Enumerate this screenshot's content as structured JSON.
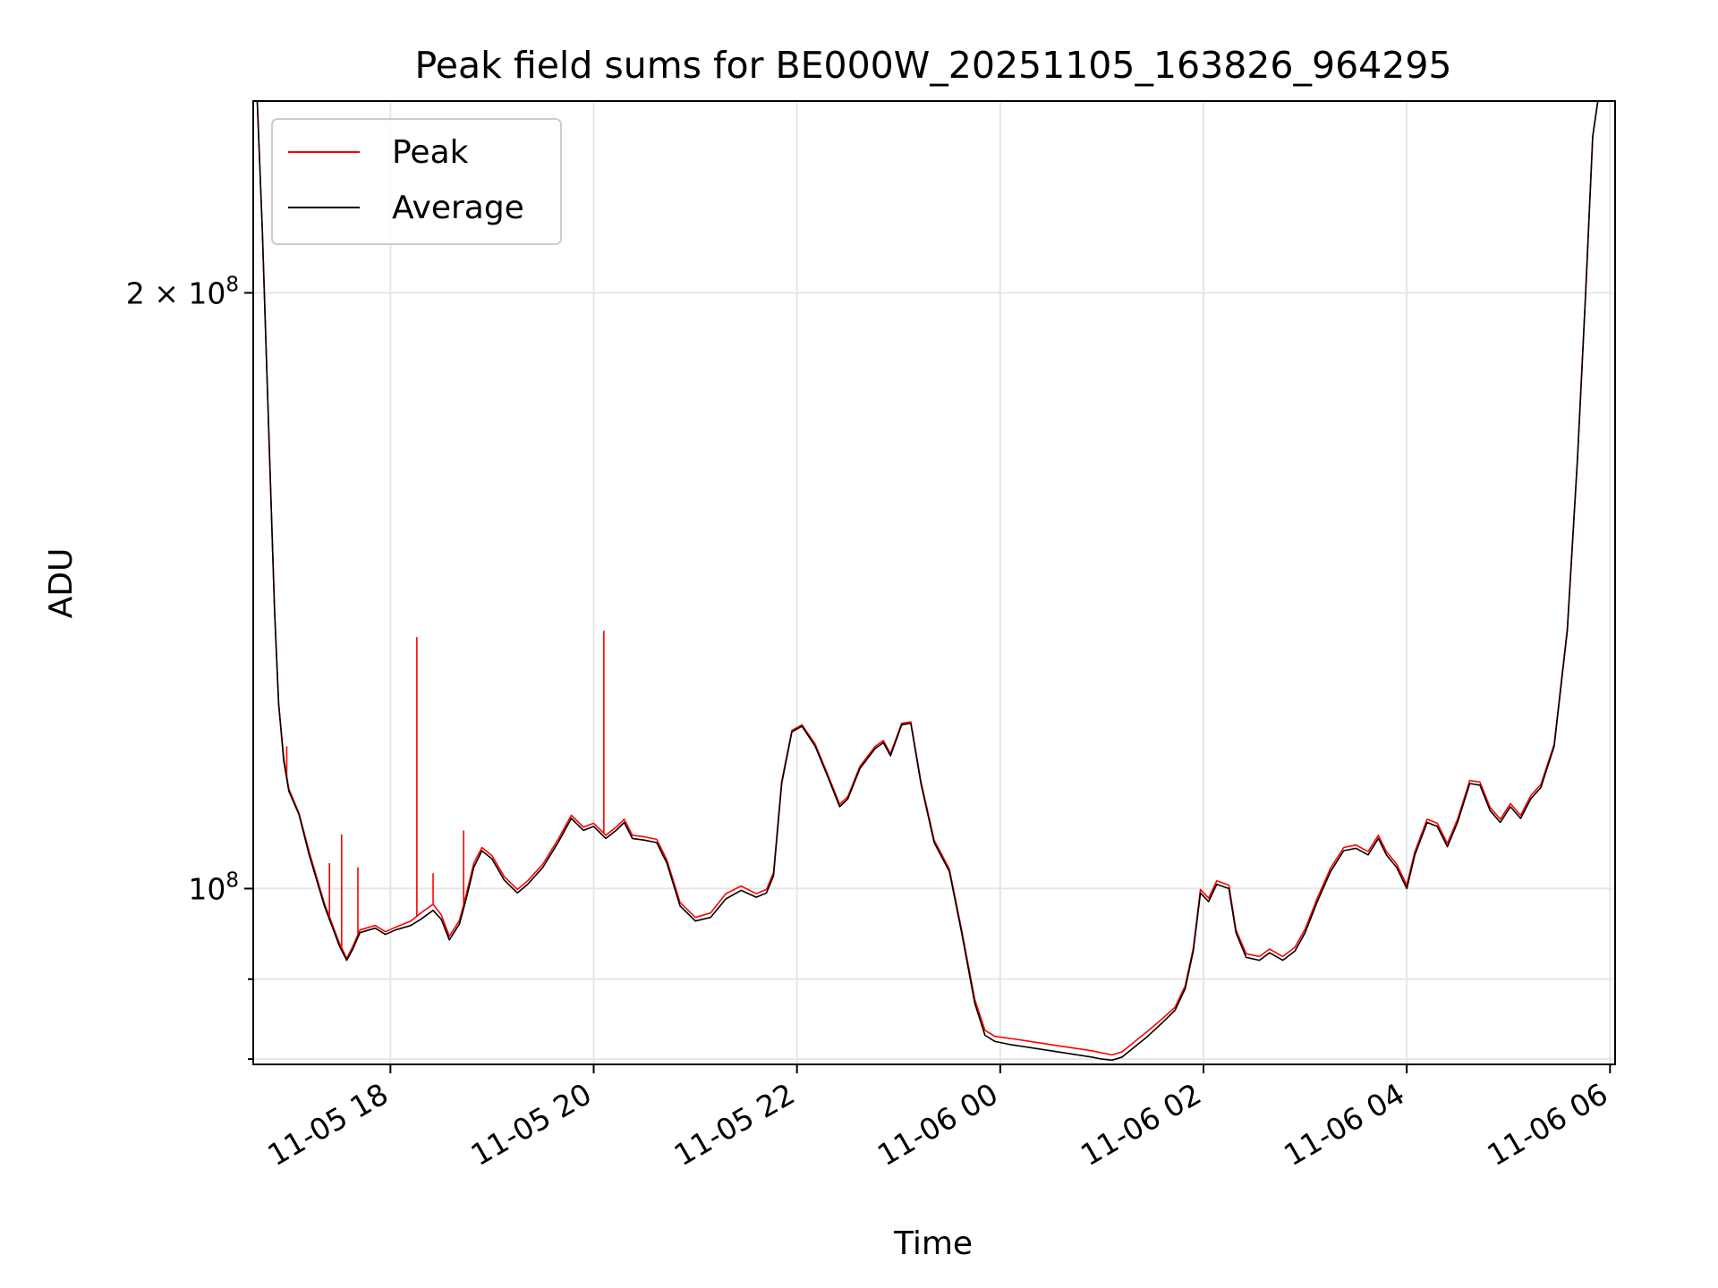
{
  "chart_data": {
    "type": "line",
    "title": "Peak field sums for BE000W_20251105_163826_964295",
    "xlabel": "Time",
    "ylabel": "ADU",
    "yscale": "log",
    "ylim": [
      81500000,
      250000000
    ],
    "x_unit": "hours since 2025-11-05 17:00",
    "xlim": [
      -0.35,
      13.05
    ],
    "x_ticks": [
      {
        "value": 1,
        "label": "11-05 18"
      },
      {
        "value": 3,
        "label": "11-05 20"
      },
      {
        "value": 5,
        "label": "11-05 22"
      },
      {
        "value": 7,
        "label": "11-06 00"
      },
      {
        "value": 9,
        "label": "11-06 02"
      },
      {
        "value": 11,
        "label": "11-06 04"
      },
      {
        "value": 13,
        "label": "11-06 06"
      }
    ],
    "y_ticks": [
      {
        "value": 100000000,
        "base": "10",
        "exp": "8",
        "coef": ""
      },
      {
        "value": 200000000,
        "base": "10",
        "exp": "8",
        "coef": "2 × "
      }
    ],
    "y_minor_ticks": [
      82000000,
      90000000
    ],
    "grid": true,
    "legend_position": "upper-left",
    "colors": {
      "peak": "#ff0000",
      "average": "#000000",
      "grid": "#e6e6e6"
    },
    "series": [
      {
        "name": "Average",
        "color": "#000000",
        "points": [
          [
            -0.31,
            250000000
          ],
          [
            -0.26,
            215000000
          ],
          [
            -0.22,
            185000000
          ],
          [
            -0.18,
            160000000
          ],
          [
            -0.14,
            138000000
          ],
          [
            -0.1,
            124000000
          ],
          [
            -0.05,
            116000000
          ],
          [
            0.0,
            112000000
          ],
          [
            0.1,
            109000000
          ],
          [
            0.2,
            104000000
          ],
          [
            0.35,
            98000000
          ],
          [
            0.5,
            93500000
          ],
          [
            0.57,
            92000000
          ],
          [
            0.63,
            93200000
          ],
          [
            0.7,
            95000000
          ],
          [
            0.85,
            95500000
          ],
          [
            0.95,
            94800000
          ],
          [
            1.05,
            95300000
          ],
          [
            1.2,
            95800000
          ],
          [
            1.3,
            96500000
          ],
          [
            1.42,
            97500000
          ],
          [
            1.5,
            96500000
          ],
          [
            1.58,
            94200000
          ],
          [
            1.68,
            96000000
          ],
          [
            1.75,
            99000000
          ],
          [
            1.82,
            102500000
          ],
          [
            1.9,
            104500000
          ],
          [
            2.0,
            103500000
          ],
          [
            2.12,
            101000000
          ],
          [
            2.25,
            99500000
          ],
          [
            2.35,
            100500000
          ],
          [
            2.5,
            102500000
          ],
          [
            2.65,
            105500000
          ],
          [
            2.78,
            108500000
          ],
          [
            2.9,
            107000000
          ],
          [
            3.0,
            107500000
          ],
          [
            3.12,
            106000000
          ],
          [
            3.22,
            107000000
          ],
          [
            3.3,
            108000000
          ],
          [
            3.38,
            106000000
          ],
          [
            3.5,
            105800000
          ],
          [
            3.62,
            105500000
          ],
          [
            3.72,
            103000000
          ],
          [
            3.85,
            98000000
          ],
          [
            4.0,
            96300000
          ],
          [
            4.15,
            96700000
          ],
          [
            4.3,
            98800000
          ],
          [
            4.45,
            99800000
          ],
          [
            4.6,
            99000000
          ],
          [
            4.7,
            99500000
          ],
          [
            4.77,
            101500000
          ],
          [
            4.85,
            113000000
          ],
          [
            4.95,
            120000000
          ],
          [
            5.05,
            120800000
          ],
          [
            5.18,
            118000000
          ],
          [
            5.3,
            114000000
          ],
          [
            5.42,
            110000000
          ],
          [
            5.5,
            111000000
          ],
          [
            5.62,
            115000000
          ],
          [
            5.77,
            117700000
          ],
          [
            5.85,
            118500000
          ],
          [
            5.92,
            116700000
          ],
          [
            6.03,
            121000000
          ],
          [
            6.12,
            121200000
          ],
          [
            6.22,
            113000000
          ],
          [
            6.35,
            105500000
          ],
          [
            6.5,
            102000000
          ],
          [
            6.62,
            95000000
          ],
          [
            6.75,
            87500000
          ],
          [
            6.85,
            84300000
          ],
          [
            6.95,
            83700000
          ],
          [
            7.1,
            83400000
          ],
          [
            7.3,
            83100000
          ],
          [
            7.5,
            82800000
          ],
          [
            7.7,
            82500000
          ],
          [
            7.9,
            82200000
          ],
          [
            8.0,
            82000000
          ],
          [
            8.1,
            81900000
          ],
          [
            8.2,
            82200000
          ],
          [
            8.3,
            83000000
          ],
          [
            8.45,
            84200000
          ],
          [
            8.6,
            85600000
          ],
          [
            8.72,
            86800000
          ],
          [
            8.82,
            89000000
          ],
          [
            8.9,
            93000000
          ],
          [
            8.97,
            99500000
          ],
          [
            9.05,
            98500000
          ],
          [
            9.13,
            100500000
          ],
          [
            9.25,
            100000000
          ],
          [
            9.32,
            95000000
          ],
          [
            9.42,
            92300000
          ],
          [
            9.55,
            92000000
          ],
          [
            9.65,
            92800000
          ],
          [
            9.78,
            92000000
          ],
          [
            9.9,
            93000000
          ],
          [
            10.0,
            95000000
          ],
          [
            10.12,
            98500000
          ],
          [
            10.25,
            102000000
          ],
          [
            10.38,
            104500000
          ],
          [
            10.5,
            104800000
          ],
          [
            10.62,
            104000000
          ],
          [
            10.72,
            106000000
          ],
          [
            10.8,
            104000000
          ],
          [
            10.9,
            102500000
          ],
          [
            11.0,
            100000000
          ],
          [
            11.08,
            104000000
          ],
          [
            11.2,
            108000000
          ],
          [
            11.3,
            107500000
          ],
          [
            11.4,
            105000000
          ],
          [
            11.5,
            108000000
          ],
          [
            11.62,
            113000000
          ],
          [
            11.72,
            112800000
          ],
          [
            11.82,
            109500000
          ],
          [
            11.92,
            108000000
          ],
          [
            12.02,
            110000000
          ],
          [
            12.12,
            108500000
          ],
          [
            12.22,
            111000000
          ],
          [
            12.32,
            112500000
          ],
          [
            12.45,
            118000000
          ],
          [
            12.58,
            135000000
          ],
          [
            12.68,
            165000000
          ],
          [
            12.76,
            200000000
          ],
          [
            12.83,
            240000000
          ],
          [
            12.88,
            250000000
          ]
        ]
      },
      {
        "name": "Peak",
        "color": "#ff0000",
        "points": [
          [
            -0.31,
            250000000
          ],
          [
            -0.26,
            215000000
          ],
          [
            -0.22,
            185000000
          ],
          [
            -0.18,
            160000000
          ],
          [
            -0.14,
            138000000
          ],
          [
            -0.1,
            124000000
          ],
          [
            -0.05,
            116400000
          ],
          [
            0.0,
            112300000
          ],
          [
            0.1,
            109200000
          ],
          [
            0.2,
            104400000
          ],
          [
            0.35,
            98300000
          ],
          [
            0.5,
            93800000
          ],
          [
            0.57,
            92200000
          ],
          [
            0.63,
            93500000
          ],
          [
            0.7,
            95300000
          ],
          [
            0.85,
            95800000
          ],
          [
            0.95,
            95100000
          ],
          [
            1.05,
            95600000
          ],
          [
            1.2,
            96300000
          ],
          [
            1.3,
            97200000
          ],
          [
            1.42,
            98200000
          ],
          [
            1.5,
            97000000
          ],
          [
            1.58,
            94600000
          ],
          [
            1.68,
            96400000
          ],
          [
            1.75,
            99500000
          ],
          [
            1.82,
            103000000
          ],
          [
            1.9,
            104900000
          ],
          [
            2.0,
            103900000
          ],
          [
            2.12,
            101400000
          ],
          [
            2.25,
            99900000
          ],
          [
            2.35,
            100900000
          ],
          [
            2.5,
            102900000
          ],
          [
            2.65,
            105900000
          ],
          [
            2.78,
            108900000
          ],
          [
            2.9,
            107400000
          ],
          [
            3.0,
            107900000
          ],
          [
            3.12,
            106400000
          ],
          [
            3.22,
            107400000
          ],
          [
            3.3,
            108400000
          ],
          [
            3.38,
            106400000
          ],
          [
            3.5,
            106200000
          ],
          [
            3.62,
            105900000
          ],
          [
            3.72,
            103400000
          ],
          [
            3.85,
            98400000
          ],
          [
            4.0,
            96700000
          ],
          [
            4.15,
            97200000
          ],
          [
            4.3,
            99400000
          ],
          [
            4.45,
            100300000
          ],
          [
            4.6,
            99400000
          ],
          [
            4.7,
            99900000
          ],
          [
            4.77,
            101900000
          ],
          [
            4.85,
            113300000
          ],
          [
            4.95,
            120200000
          ],
          [
            5.05,
            121000000
          ],
          [
            5.18,
            118300000
          ],
          [
            5.3,
            114300000
          ],
          [
            5.42,
            110300000
          ],
          [
            5.5,
            111300000
          ],
          [
            5.62,
            115300000
          ],
          [
            5.77,
            118000000
          ],
          [
            5.85,
            118800000
          ],
          [
            5.92,
            117000000
          ],
          [
            6.03,
            121200000
          ],
          [
            6.12,
            121400000
          ],
          [
            6.22,
            113300000
          ],
          [
            6.35,
            105800000
          ],
          [
            6.5,
            102300000
          ],
          [
            6.62,
            95300000
          ],
          [
            6.75,
            87900000
          ],
          [
            6.85,
            84800000
          ],
          [
            6.95,
            84200000
          ],
          [
            7.1,
            84000000
          ],
          [
            7.3,
            83700000
          ],
          [
            7.5,
            83400000
          ],
          [
            7.7,
            83100000
          ],
          [
            7.9,
            82800000
          ],
          [
            8.0,
            82600000
          ],
          [
            8.1,
            82400000
          ],
          [
            8.2,
            82700000
          ],
          [
            8.3,
            83500000
          ],
          [
            8.45,
            84700000
          ],
          [
            8.6,
            86000000
          ],
          [
            8.72,
            87100000
          ],
          [
            8.82,
            89300000
          ],
          [
            8.9,
            93300000
          ],
          [
            8.97,
            99900000
          ],
          [
            9.05,
            98900000
          ],
          [
            9.13,
            100900000
          ],
          [
            9.25,
            100400000
          ],
          [
            9.32,
            95300000
          ],
          [
            9.42,
            92700000
          ],
          [
            9.55,
            92400000
          ],
          [
            9.65,
            93200000
          ],
          [
            9.78,
            92400000
          ],
          [
            9.9,
            93400000
          ],
          [
            10.0,
            95400000
          ],
          [
            10.12,
            98900000
          ],
          [
            10.25,
            102400000
          ],
          [
            10.38,
            104900000
          ],
          [
            10.5,
            105200000
          ],
          [
            10.62,
            104400000
          ],
          [
            10.72,
            106400000
          ],
          [
            10.8,
            104400000
          ],
          [
            10.9,
            102900000
          ],
          [
            11.0,
            100400000
          ],
          [
            11.08,
            104400000
          ],
          [
            11.2,
            108400000
          ],
          [
            11.3,
            107900000
          ],
          [
            11.4,
            105400000
          ],
          [
            11.5,
            108400000
          ],
          [
            11.62,
            113400000
          ],
          [
            11.72,
            113200000
          ],
          [
            11.82,
            109900000
          ],
          [
            11.92,
            108400000
          ],
          [
            12.02,
            110400000
          ],
          [
            12.12,
            108900000
          ],
          [
            12.22,
            111400000
          ],
          [
            12.32,
            112900000
          ],
          [
            12.45,
            118300000
          ],
          [
            12.58,
            135300000
          ],
          [
            12.68,
            165000000
          ],
          [
            12.76,
            200000000
          ],
          [
            12.83,
            240000000
          ],
          [
            12.88,
            250000000
          ]
        ],
        "spikes": [
          [
            -0.02,
            118000000
          ],
          [
            0.4,
            103000000
          ],
          [
            0.52,
            106500000
          ],
          [
            0.68,
            102500000
          ],
          [
            1.26,
            134000000
          ],
          [
            1.42,
            101800000
          ],
          [
            1.72,
            107000000
          ],
          [
            1.87,
            104200000
          ],
          [
            3.1,
            135000000
          ]
        ]
      }
    ]
  }
}
